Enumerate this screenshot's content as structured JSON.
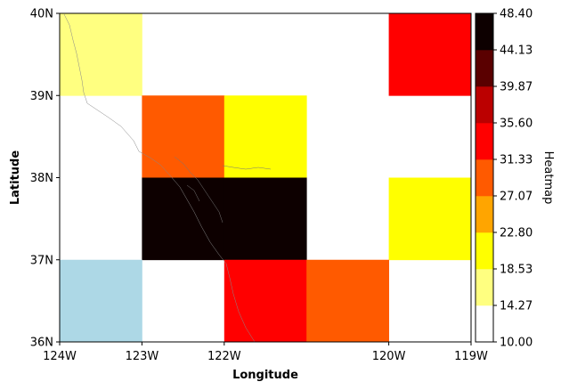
{
  "chart_data": {
    "type": "heatmap",
    "xlabel": "Longitude",
    "ylabel": "Latitude",
    "x_range": [
      -124,
      -119
    ],
    "y_range": [
      36,
      40
    ],
    "x_ticks": [
      {
        "value": -124,
        "label": "124W"
      },
      {
        "value": -123,
        "label": "123W"
      },
      {
        "value": -122,
        "label": "122W"
      },
      {
        "value": -120,
        "label": "120W"
      },
      {
        "value": -119,
        "label": "119W"
      }
    ],
    "y_ticks": [
      {
        "value": 36,
        "label": "36N"
      },
      {
        "value": 37,
        "label": "37N"
      },
      {
        "value": 38,
        "label": "38N"
      },
      {
        "value": 39,
        "label": "39N"
      },
      {
        "value": 40,
        "label": "40N"
      }
    ],
    "grid_columns": 5,
    "grid_rows": 4,
    "cells": [
      {
        "col": 0,
        "row": 0,
        "value": 15
      },
      {
        "col": 4,
        "row": 0,
        "value": 33
      },
      {
        "col": 1,
        "row": 1,
        "value": 29
      },
      {
        "col": 2,
        "row": 1,
        "value": 20
      },
      {
        "col": 1,
        "row": 2,
        "value": 48
      },
      {
        "col": 2,
        "row": 2,
        "value": 48
      },
      {
        "col": 4,
        "row": 2,
        "value": 20
      },
      {
        "col": 0,
        "row": 3,
        "value": "no-data"
      },
      {
        "col": 2,
        "row": 3,
        "value": 33
      },
      {
        "col": 3,
        "row": 3,
        "value": 29
      }
    ],
    "no_data_color": "#add8e6",
    "colorbar": {
      "label": "Heatmap",
      "range": [
        10.0,
        48.4
      ],
      "tick_labels": [
        "10.00",
        "14.27",
        "18.53",
        "22.80",
        "27.07",
        "31.33",
        "35.60",
        "39.87",
        "44.13",
        "48.40"
      ],
      "colors": [
        "#ffffff",
        "#ffff80",
        "#ffff00",
        "#ffa500",
        "#ff5a00",
        "#ff0000",
        "#bb0000",
        "#5a0000",
        "#0d0000"
      ]
    },
    "grid": false,
    "legend": "colorbar-right"
  }
}
